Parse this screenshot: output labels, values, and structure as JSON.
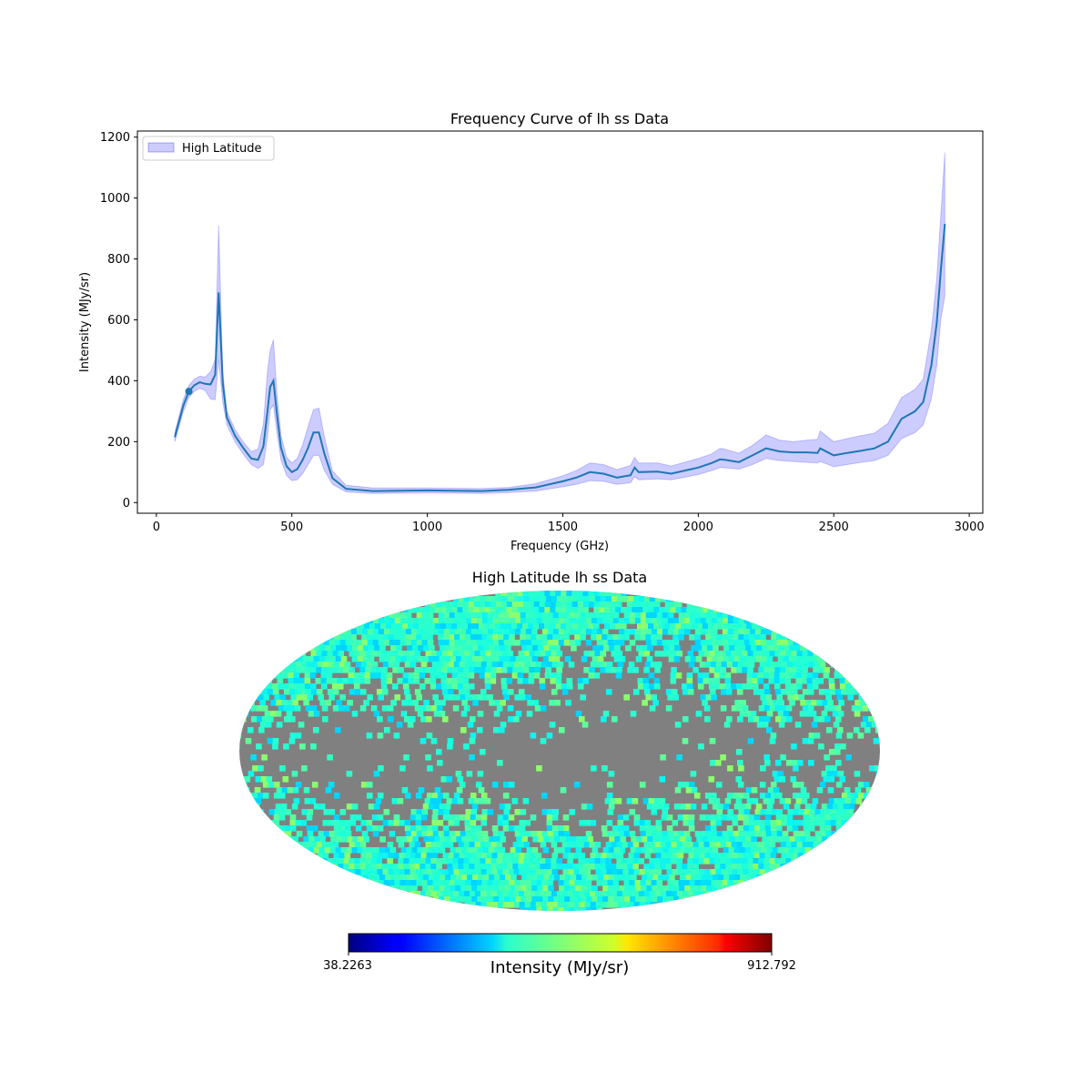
{
  "colors": {
    "line": "#1f77b4",
    "band_fill": "#0000ff",
    "band_alpha": 0.2,
    "masked": "#808080",
    "colormap": "jet"
  },
  "chart_data": [
    {
      "type": "line",
      "title": "Frequency Curve of lh ss Data",
      "xlabel": "Frequency (GHz)",
      "ylabel": "Intensity (MJy/sr)",
      "xlim": [
        -70,
        3050
      ],
      "ylim": [
        -35,
        1220
      ],
      "xticks": [
        0,
        500,
        1000,
        1500,
        2000,
        2500,
        3000
      ],
      "yticks": [
        0,
        200,
        400,
        600,
        800,
        1000,
        1200
      ],
      "grid": false,
      "legend": {
        "location": "upper-left",
        "entries": [
          "High Latitude"
        ]
      },
      "x": [
        68,
        100,
        120,
        140,
        160,
        180,
        200,
        217,
        230,
        245,
        260,
        290,
        320,
        350,
        375,
        395,
        410,
        420,
        432,
        445,
        460,
        480,
        500,
        520,
        540,
        560,
        580,
        600,
        620,
        650,
        700,
        800,
        1000,
        1200,
        1300,
        1400,
        1500,
        1550,
        1600,
        1650,
        1700,
        1750,
        1765,
        1780,
        1850,
        1900,
        2000,
        2050,
        2080,
        2100,
        2150,
        2200,
        2250,
        2300,
        2350,
        2400,
        2440,
        2450,
        2500,
        2550,
        2600,
        2650,
        2700,
        2750,
        2800,
        2830,
        2860,
        2880,
        2895,
        2910
      ],
      "series": [
        {
          "values": [
            215,
            320,
            365,
            385,
            395,
            390,
            388,
            420,
            690,
            390,
            280,
            220,
            180,
            145,
            140,
            185,
            300,
            380,
            400,
            290,
            180,
            120,
            100,
            110,
            140,
            180,
            230,
            230,
            160,
            80,
            45,
            38,
            40,
            38,
            42,
            50,
            70,
            82,
            100,
            95,
            82,
            90,
            115,
            100,
            102,
            95,
            115,
            130,
            142,
            140,
            133,
            155,
            178,
            168,
            165,
            165,
            163,
            178,
            155,
            163,
            170,
            178,
            200,
            275,
            300,
            330,
            450,
            590,
            760,
            915
          ],
          "lower": [
            200,
            300,
            345,
            365,
            375,
            368,
            340,
            338,
            470,
            330,
            255,
            200,
            160,
            125,
            112,
            125,
            215,
            305,
            320,
            230,
            140,
            90,
            72,
            75,
            95,
            125,
            155,
            155,
            105,
            60,
            35,
            30,
            32,
            30,
            33,
            38,
            52,
            60,
            72,
            70,
            60,
            65,
            85,
            75,
            78,
            75,
            92,
            105,
            115,
            114,
            110,
            125,
            145,
            138,
            135,
            132,
            130,
            135,
            118,
            125,
            132,
            138,
            155,
            210,
            230,
            255,
            340,
            450,
            600,
            680
          ],
          "upper": [
            230,
            340,
            385,
            405,
            415,
            412,
            430,
            470,
            910,
            430,
            300,
            240,
            200,
            168,
            175,
            260,
            430,
            500,
            535,
            360,
            220,
            150,
            130,
            145,
            190,
            250,
            305,
            310,
            215,
            103,
            57,
            48,
            48,
            46,
            50,
            62,
            88,
            105,
            130,
            125,
            108,
            122,
            148,
            130,
            130,
            120,
            145,
            160,
            178,
            175,
            162,
            188,
            222,
            205,
            200,
            205,
            208,
            235,
            200,
            210,
            220,
            228,
            260,
            345,
            372,
            405,
            565,
            735,
            940,
            1150
          ]
        }
      ],
      "markers": [
        {
          "x": 120,
          "y": 365
        }
      ]
    },
    {
      "type": "heatmap",
      "title": "High Latitude lh ss Data",
      "projection": "mollweide",
      "colorbar": {
        "label": "Intensity (MJy/sr)",
        "min_label": "38.2263",
        "max_label": "912.792",
        "min": 38.2263,
        "max": 912.792
      }
    }
  ]
}
